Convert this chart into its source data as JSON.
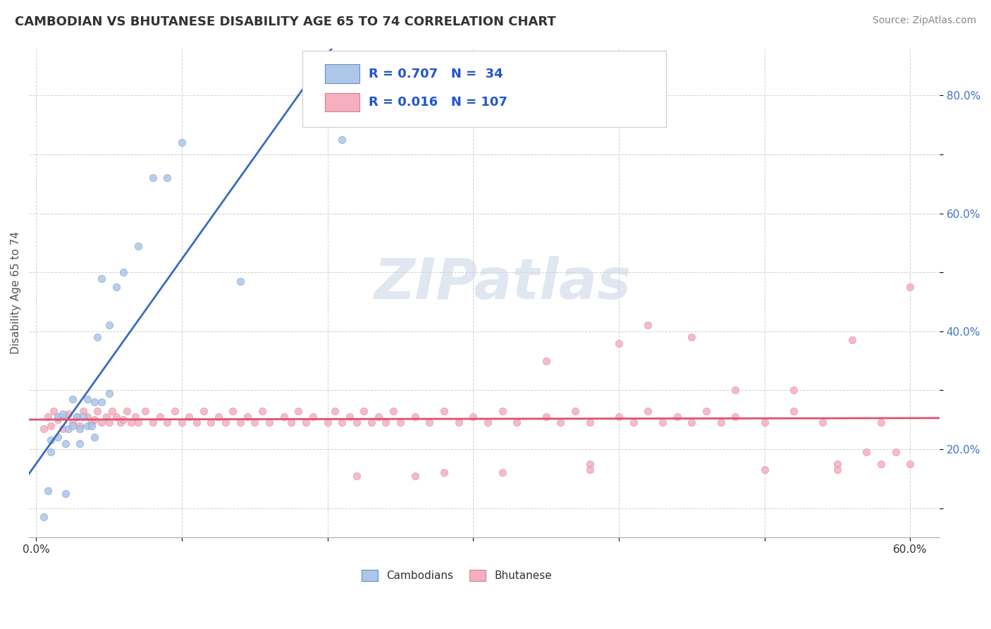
{
  "title": "CAMBODIAN VS BHUTANESE DISABILITY AGE 65 TO 74 CORRELATION CHART",
  "source": "Source: ZipAtlas.com",
  "ylabel": "Disability Age 65 to 74",
  "xlim": [
    -0.005,
    0.62
  ],
  "ylim": [
    0.05,
    0.88
  ],
  "cambodian_R": 0.707,
  "cambodian_N": 34,
  "bhutanese_R": 0.016,
  "bhutanese_N": 107,
  "cambodian_color": "#aec6e8",
  "bhutanese_color": "#f4afc0",
  "cambodian_line_color": "#3a6bbf",
  "bhutanese_line_color": "#e05070",
  "legend_text_color": "#2255cc",
  "watermark_color": "#ccd8e8",
  "cambodian_x": [
    0.005,
    0.008,
    0.01,
    0.01,
    0.015,
    0.015,
    0.018,
    0.02,
    0.02,
    0.022,
    0.025,
    0.025,
    0.028,
    0.03,
    0.03,
    0.032,
    0.035,
    0.035,
    0.038,
    0.04,
    0.04,
    0.042,
    0.045,
    0.045,
    0.05,
    0.05,
    0.055,
    0.06,
    0.07,
    0.08,
    0.09,
    0.1,
    0.14,
    0.21
  ],
  "cambodian_y": [
    0.085,
    0.13,
    0.195,
    0.215,
    0.22,
    0.255,
    0.26,
    0.125,
    0.21,
    0.235,
    0.24,
    0.285,
    0.255,
    0.21,
    0.235,
    0.255,
    0.24,
    0.285,
    0.24,
    0.22,
    0.28,
    0.39,
    0.28,
    0.49,
    0.295,
    0.41,
    0.475,
    0.5,
    0.545,
    0.66,
    0.66,
    0.72,
    0.485,
    0.725
  ],
  "bhutanese_x": [
    0.005,
    0.008,
    0.01,
    0.012,
    0.015,
    0.018,
    0.02,
    0.022,
    0.025,
    0.028,
    0.03,
    0.032,
    0.035,
    0.038,
    0.04,
    0.042,
    0.045,
    0.048,
    0.05,
    0.052,
    0.055,
    0.058,
    0.06,
    0.062,
    0.065,
    0.068,
    0.07,
    0.075,
    0.08,
    0.085,
    0.09,
    0.095,
    0.1,
    0.105,
    0.11,
    0.115,
    0.12,
    0.125,
    0.13,
    0.135,
    0.14,
    0.145,
    0.15,
    0.155,
    0.16,
    0.17,
    0.175,
    0.18,
    0.185,
    0.19,
    0.2,
    0.205,
    0.21,
    0.215,
    0.22,
    0.225,
    0.23,
    0.235,
    0.24,
    0.245,
    0.25,
    0.26,
    0.27,
    0.28,
    0.29,
    0.3,
    0.31,
    0.32,
    0.33,
    0.35,
    0.36,
    0.37,
    0.38,
    0.4,
    0.41,
    0.42,
    0.43,
    0.44,
    0.45,
    0.46,
    0.47,
    0.48,
    0.5,
    0.52,
    0.54,
    0.55,
    0.57,
    0.58,
    0.59,
    0.6,
    0.35,
    0.4,
    0.45,
    0.5,
    0.55,
    0.6,
    0.48,
    0.52,
    0.38,
    0.42,
    0.56,
    0.28,
    0.32,
    0.38,
    0.22,
    0.26,
    0.58
  ],
  "bhutanese_y": [
    0.235,
    0.255,
    0.24,
    0.265,
    0.25,
    0.235,
    0.255,
    0.26,
    0.245,
    0.255,
    0.24,
    0.265,
    0.255,
    0.245,
    0.25,
    0.265,
    0.245,
    0.255,
    0.245,
    0.265,
    0.255,
    0.245,
    0.25,
    0.265,
    0.245,
    0.255,
    0.245,
    0.265,
    0.245,
    0.255,
    0.245,
    0.265,
    0.245,
    0.255,
    0.245,
    0.265,
    0.245,
    0.255,
    0.245,
    0.265,
    0.245,
    0.255,
    0.245,
    0.265,
    0.245,
    0.255,
    0.245,
    0.265,
    0.245,
    0.255,
    0.245,
    0.265,
    0.245,
    0.255,
    0.245,
    0.265,
    0.245,
    0.255,
    0.245,
    0.265,
    0.245,
    0.255,
    0.245,
    0.265,
    0.245,
    0.255,
    0.245,
    0.265,
    0.245,
    0.255,
    0.245,
    0.265,
    0.245,
    0.255,
    0.245,
    0.265,
    0.245,
    0.255,
    0.245,
    0.265,
    0.245,
    0.255,
    0.245,
    0.265,
    0.245,
    0.175,
    0.195,
    0.245,
    0.195,
    0.175,
    0.35,
    0.38,
    0.39,
    0.165,
    0.165,
    0.475,
    0.3,
    0.3,
    0.175,
    0.41,
    0.385,
    0.16,
    0.16,
    0.165,
    0.155,
    0.155,
    0.175
  ]
}
